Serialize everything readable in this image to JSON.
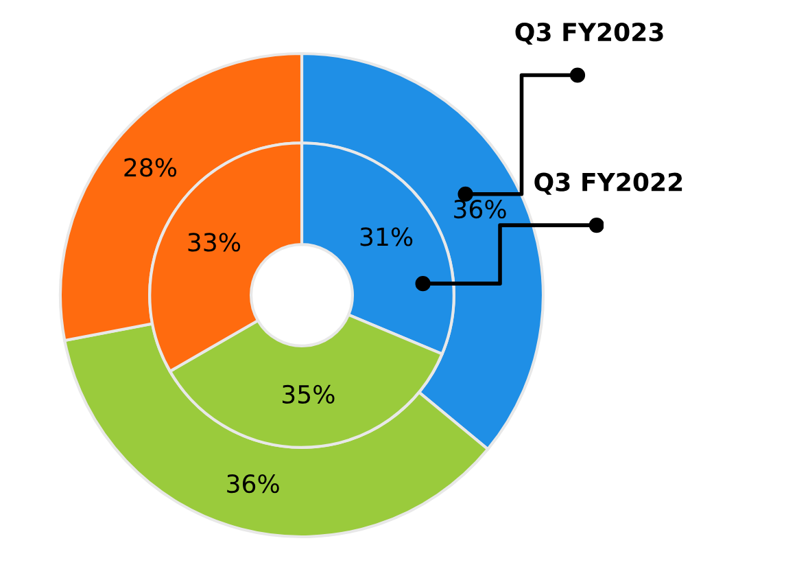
{
  "chart_data": {
    "type": "donut",
    "categories": [
      null,
      null,
      null
    ],
    "colors": [
      "#1f8fe6",
      "#9acb3c",
      "#ff6b0f"
    ],
    "series": [
      {
        "name": "Q3 FY2023",
        "values": [
          36,
          36,
          28
        ],
        "value_labels": [
          "36%",
          "36%",
          "28%"
        ]
      },
      {
        "name": "Q3 FY2022",
        "values": [
          31,
          35,
          33
        ],
        "value_labels": [
          "31%",
          "35%",
          "33%"
        ]
      }
    ],
    "legend": false
  }
}
